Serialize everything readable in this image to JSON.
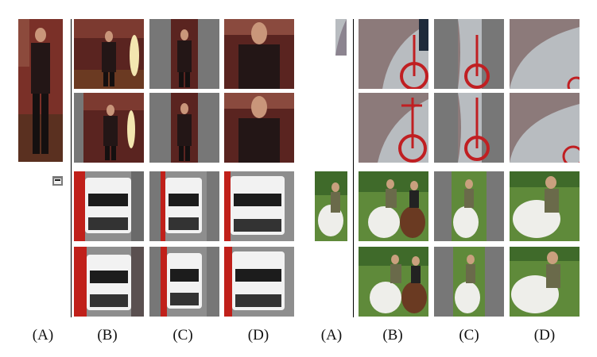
{
  "figure": {
    "left_panel_labels": [
      "(A)",
      "(B)",
      "(C)",
      "(D)"
    ],
    "right_panel_labels": [
      "(A)",
      "(B)",
      "(C)",
      "(D)"
    ]
  },
  "colors": {
    "gray_pad": "#777777",
    "room_wall": "#6a2a24",
    "street": "#9a9a9a",
    "grass": "#5f8a3a",
    "bike_path": "#b8bcc0"
  }
}
